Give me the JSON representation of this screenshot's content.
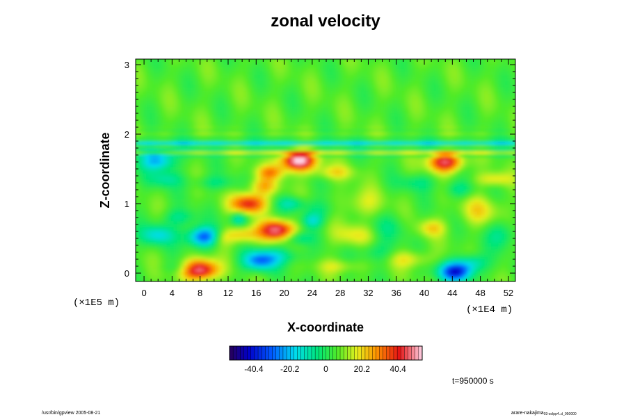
{
  "chart_data": {
    "type": "heatmap",
    "title": "zonal velocity",
    "xlabel": "X-coordinate",
    "ylabel": "Z-coordinate",
    "x_scale_note": "(×1E4 m)",
    "z_scale_note": "(×1E5 m)",
    "xlim": [
      -1.2,
      53
    ],
    "ylim": [
      -0.12,
      3.08
    ],
    "x_ticks": [
      "0",
      "4",
      "8",
      "12",
      "16",
      "20",
      "24",
      "28",
      "32",
      "36",
      "40",
      "44",
      "48",
      "52"
    ],
    "x_tick_values": [
      0,
      4,
      8,
      12,
      16,
      20,
      24,
      28,
      32,
      36,
      40,
      44,
      48,
      52
    ],
    "y_ticks": [
      "0",
      "1",
      "2",
      "3"
    ],
    "y_tick_values": [
      0,
      1,
      2,
      3
    ],
    "colorbar": {
      "ticks": [
        "-40.4",
        "-20.2",
        "0",
        "20.2",
        "40.4"
      ],
      "tick_values": [
        -40.4,
        -20.2,
        0,
        20.2,
        40.4
      ],
      "range": [
        -54,
        54
      ]
    },
    "time_label": "t=950000 s",
    "features": [
      {
        "x": 8,
        "z": 0.05,
        "value": 48
      },
      {
        "x": 22,
        "z": 1.62,
        "value": 52
      },
      {
        "x": 44.5,
        "z": 0.02,
        "value": -45
      },
      {
        "x": 8.5,
        "z": 0.52,
        "value": -38
      },
      {
        "x": 19,
        "z": 0.62,
        "value": 42
      },
      {
        "x": 15,
        "z": 1.0,
        "value": 36
      },
      {
        "x": 16.5,
        "z": 0.18,
        "value": -34
      },
      {
        "x": 2,
        "z": 1.62,
        "value": -30
      },
      {
        "x": 43,
        "z": 1.6,
        "value": 40
      },
      {
        "x": 2,
        "z": 0.55,
        "value": -22
      }
    ]
  },
  "footer": {
    "left": "/usr/bin/gpview 2005-08-21",
    "right": "arare-nakajima",
    "right_sub": "03-solpp4..d_950000"
  }
}
